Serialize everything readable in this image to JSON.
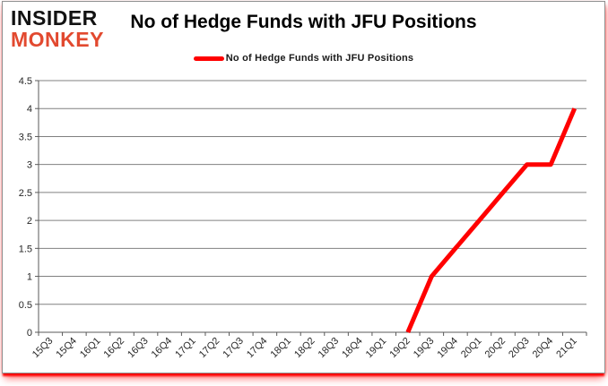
{
  "logo": {
    "line1": "INSIDER",
    "line2": "MONKEY"
  },
  "header": {
    "title": "No of Hedge Funds with JFU Positions"
  },
  "legend": {
    "label": "No of Hedge Funds with JFU Positions",
    "marker_color": "#ff0000"
  },
  "colors": {
    "line": "#ff0000",
    "grid": "#808080",
    "axis": "#595959",
    "tick": "#595959",
    "axis_text": "#262626",
    "logo_black": "#121212",
    "logo_red": "#e2492f",
    "frame_border": "#8f8f8f",
    "glow": "#ff0000",
    "background": "#ffffff"
  },
  "chart_data": {
    "type": "line",
    "title": "No of Hedge Funds with JFU Positions",
    "xlabel": "",
    "ylabel": "",
    "categories": [
      "15Q3",
      "15Q4",
      "16Q1",
      "16Q2",
      "16Q3",
      "16Q4",
      "17Q1",
      "17Q2",
      "17Q3",
      "17Q4",
      "18Q1",
      "18Q2",
      "18Q3",
      "18Q4",
      "19Q1",
      "19Q2",
      "19Q3",
      "19Q4",
      "20Q1",
      "20Q2",
      "20Q3",
      "20Q4",
      "21Q1"
    ],
    "series": [
      {
        "name": "No of Hedge Funds with JFU Positions",
        "color": "#ff0000",
        "values": [
          null,
          null,
          null,
          null,
          null,
          null,
          null,
          null,
          null,
          null,
          null,
          null,
          null,
          null,
          null,
          0,
          1,
          1.5,
          2,
          2.5,
          3,
          3,
          4
        ]
      }
    ],
    "ylim": [
      0,
      4.5
    ],
    "ytick_step": 0.5,
    "ytick_labels": [
      "0",
      "0.5",
      "1",
      "1.5",
      "2",
      "2.5",
      "3",
      "3.5",
      "4",
      "4.5"
    ],
    "grid": "horizontal",
    "legend_position": "top",
    "x_label_rotation": -45
  }
}
